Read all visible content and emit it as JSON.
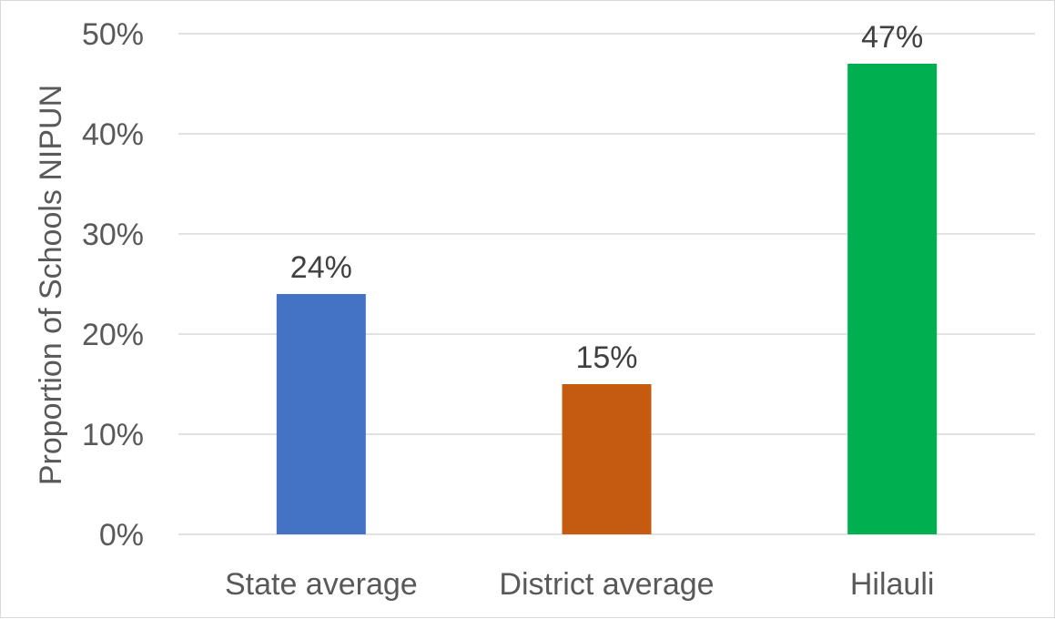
{
  "chart_data": {
    "type": "bar",
    "categories": [
      "State average",
      "District average",
      "Hilauli"
    ],
    "values": [
      24,
      15,
      47
    ],
    "data_labels": [
      "24%",
      "15%",
      "47%"
    ],
    "colors": [
      "#4472C4",
      "#C55A11",
      "#00B050"
    ],
    "title": "",
    "xlabel": "",
    "ylabel": "Proportion of Schools NIPUN",
    "ylim": [
      0,
      50
    ],
    "yticks": [
      0,
      10,
      20,
      30,
      40,
      50
    ],
    "ytick_labels": [
      "0%",
      "10%",
      "20%",
      "30%",
      "40%",
      "50%"
    ],
    "grid": "horizontal",
    "legend": "none"
  }
}
